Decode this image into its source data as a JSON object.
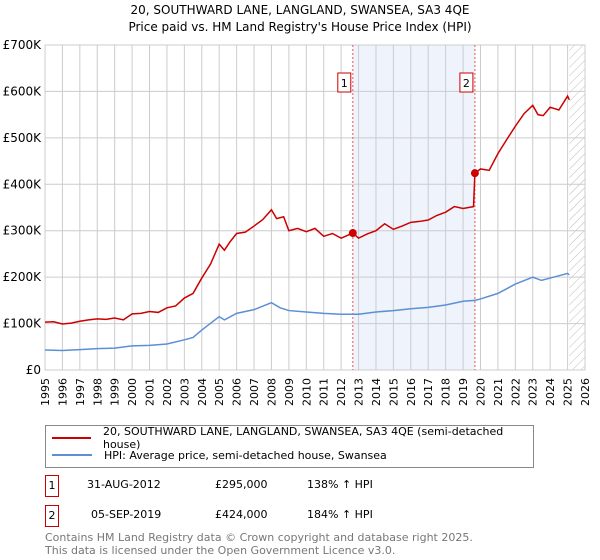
{
  "chart_data": {
    "type": "line",
    "title": "20, SOUTHWARD LANE, LANGLAND, SWANSEA, SA3 4QE",
    "subtitle": "Price paid vs. HM Land Registry's House Price Index (HPI)",
    "xlim": [
      1995,
      2026
    ],
    "ylim": [
      0,
      700000
    ],
    "x_ticks": [
      "1995",
      "1996",
      "1997",
      "1998",
      "1999",
      "2000",
      "2001",
      "2002",
      "2003",
      "2004",
      "2005",
      "2006",
      "2007",
      "2008",
      "2009",
      "2010",
      "2011",
      "2012",
      "2013",
      "2014",
      "2015",
      "2016",
      "2017",
      "2018",
      "2019",
      "2020",
      "2021",
      "2022",
      "2023",
      "2024",
      "2025",
      "2026"
    ],
    "y_ticks": [
      {
        "v": 0,
        "label": "£0"
      },
      {
        "v": 100000,
        "label": "£100K"
      },
      {
        "v": 200000,
        "label": "£200K"
      },
      {
        "v": 300000,
        "label": "£300K"
      },
      {
        "v": 400000,
        "label": "£400K"
      },
      {
        "v": 500000,
        "label": "£500K"
      },
      {
        "v": 600000,
        "label": "£600K"
      },
      {
        "v": 700000,
        "label": "£700K"
      }
    ],
    "grid": true,
    "shaded_range": [
      2012.67,
      2019.68
    ],
    "forecast_hatch_from": 2025.1,
    "series": [
      {
        "name": "20, SOUTHWARD LANE, LANGLAND, SWANSEA, SA3 4QE (semi-detached house)",
        "color": "#cc0000",
        "x": [
          1995,
          1995.5,
          1996,
          1996.5,
          1997,
          1997.5,
          1998,
          1998.5,
          1999,
          1999.5,
          2000,
          2000.5,
          2001,
          2001.5,
          2002,
          2002.5,
          2003,
          2003.5,
          2004,
          2004.5,
          2005,
          2005.3,
          2005.6,
          2006,
          2006.5,
          2007,
          2007.5,
          2008,
          2008.3,
          2008.7,
          2009,
          2009.5,
          2010,
          2010.5,
          2011,
          2011.5,
          2012,
          2012.67,
          2013,
          2013.5,
          2014,
          2014.5,
          2015,
          2015.5,
          2016,
          2016.5,
          2017,
          2017.5,
          2018,
          2018.5,
          2019,
          2019.6,
          2019.68,
          2020,
          2020.5,
          2021,
          2021.5,
          2022,
          2022.5,
          2023,
          2023.3,
          2023.6,
          2024,
          2024.5,
          2025,
          2025.1
        ],
        "y": [
          103000,
          104000,
          99000,
          101000,
          105000,
          108000,
          110000,
          109000,
          112000,
          108000,
          121000,
          122000,
          126000,
          124000,
          134000,
          138000,
          155000,
          165000,
          198000,
          228000,
          271000,
          258000,
          275000,
          294000,
          297000,
          310000,
          324000,
          345000,
          326000,
          330000,
          300000,
          305000,
          298000,
          305000,
          288000,
          294000,
          284000,
          295000,
          284000,
          293000,
          300000,
          315000,
          303000,
          310000,
          318000,
          320000,
          323000,
          333000,
          340000,
          352000,
          348000,
          352000,
          424000,
          433000,
          430000,
          466000,
          496000,
          525000,
          552000,
          570000,
          550000,
          548000,
          566000,
          560000,
          590000,
          582000
        ]
      },
      {
        "name": "HPI: Average price, semi-detached house, Swansea",
        "color": "#5b8fd6",
        "x": [
          1995,
          1996,
          1997,
          1998,
          1999,
          2000,
          2001,
          2002,
          2003,
          2003.5,
          2004,
          2005,
          2005.3,
          2006,
          2007,
          2008,
          2008.5,
          2009,
          2010,
          2011,
          2012,
          2013,
          2014,
          2015,
          2016,
          2017,
          2018,
          2019,
          2019.68,
          2020,
          2021,
          2022,
          2023,
          2023.5,
          2024,
          2025,
          2025.1
        ],
        "y": [
          43000,
          42000,
          44000,
          46000,
          47000,
          52000,
          53000,
          56000,
          65000,
          70000,
          86000,
          115000,
          108000,
          122000,
          130000,
          145000,
          134000,
          128000,
          125000,
          122000,
          120000,
          120000,
          125000,
          128000,
          132000,
          135000,
          140000,
          148000,
          150000,
          153000,
          165000,
          185000,
          200000,
          193000,
          198000,
          208000,
          205000
        ]
      }
    ],
    "markers": [
      {
        "label": "1",
        "x": 2012.67,
        "y": 295000
      },
      {
        "label": "2",
        "x": 2019.68,
        "y": 424000
      }
    ]
  },
  "transactions": [
    {
      "num": "1",
      "date": "31-AUG-2012",
      "price": "£295,000",
      "hpi": "138% ↑ HPI"
    },
    {
      "num": "2",
      "date": "05-SEP-2019",
      "price": "£424,000",
      "hpi": "184% ↑ HPI"
    }
  ],
  "footer": [
    "Contains HM Land Registry data © Crown copyright and database right 2025.",
    "This data is licensed under the Open Government Licence v3.0."
  ]
}
